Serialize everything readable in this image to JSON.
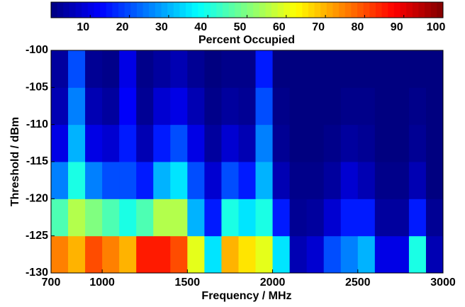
{
  "chart_data": {
    "type": "heatmap",
    "xlabel": "Frequency / MHz",
    "ylabel": "Threshold / dBm",
    "x": [
      750,
      850,
      950,
      1050,
      1150,
      1250,
      1350,
      1450,
      1550,
      1650,
      1750,
      1850,
      1950,
      2050,
      2150,
      2250,
      2350,
      2450,
      2550,
      2650,
      2750,
      2850,
      2950
    ],
    "y": [
      -127.5,
      -122.5,
      -117.5,
      -112.5,
      -107.5,
      -102.5
    ],
    "z": [
      [
        75,
        70,
        80,
        75,
        70,
        85,
        85,
        80,
        60,
        35,
        70,
        65,
        60,
        35,
        5,
        8,
        20,
        25,
        30,
        10,
        10,
        40,
        5
      ],
      [
        45,
        55,
        50,
        45,
        40,
        45,
        55,
        55,
        30,
        15,
        40,
        35,
        40,
        15,
        2,
        3,
        8,
        15,
        15,
        3,
        3,
        15,
        2
      ],
      [
        25,
        40,
        25,
        20,
        20,
        15,
        30,
        35,
        20,
        8,
        20,
        15,
        30,
        5,
        1,
        1,
        3,
        8,
        5,
        1,
        1,
        5,
        0
      ],
      [
        10,
        30,
        10,
        8,
        15,
        5,
        15,
        20,
        10,
        3,
        8,
        5,
        25,
        2,
        0,
        0,
        1,
        3,
        2,
        0,
        0,
        2,
        0
      ],
      [
        5,
        25,
        5,
        3,
        12,
        2,
        8,
        10,
        5,
        1,
        3,
        2,
        20,
        1,
        0,
        0,
        0,
        1,
        1,
        0,
        0,
        1,
        0
      ],
      [
        3,
        20,
        2,
        1,
        10,
        1,
        3,
        5,
        2,
        0,
        1,
        1,
        15,
        0,
        0,
        0,
        0,
        0,
        0,
        0,
        0,
        0,
        0
      ]
    ],
    "xlim": [
      700,
      3000
    ],
    "xticks": [
      700,
      1000,
      1500,
      2000,
      2500,
      3000
    ],
    "ylim": [
      -130,
      -100
    ],
    "yticks": [
      -130,
      -125,
      -120,
      -115,
      -110,
      -105,
      -100
    ],
    "colormap": "jet",
    "colorbar": {
      "label": "Percent Occupied",
      "lim": [
        0,
        100
      ],
      "ticks": [
        10,
        20,
        30,
        40,
        50,
        60,
        70,
        80,
        90,
        100
      ]
    }
  }
}
